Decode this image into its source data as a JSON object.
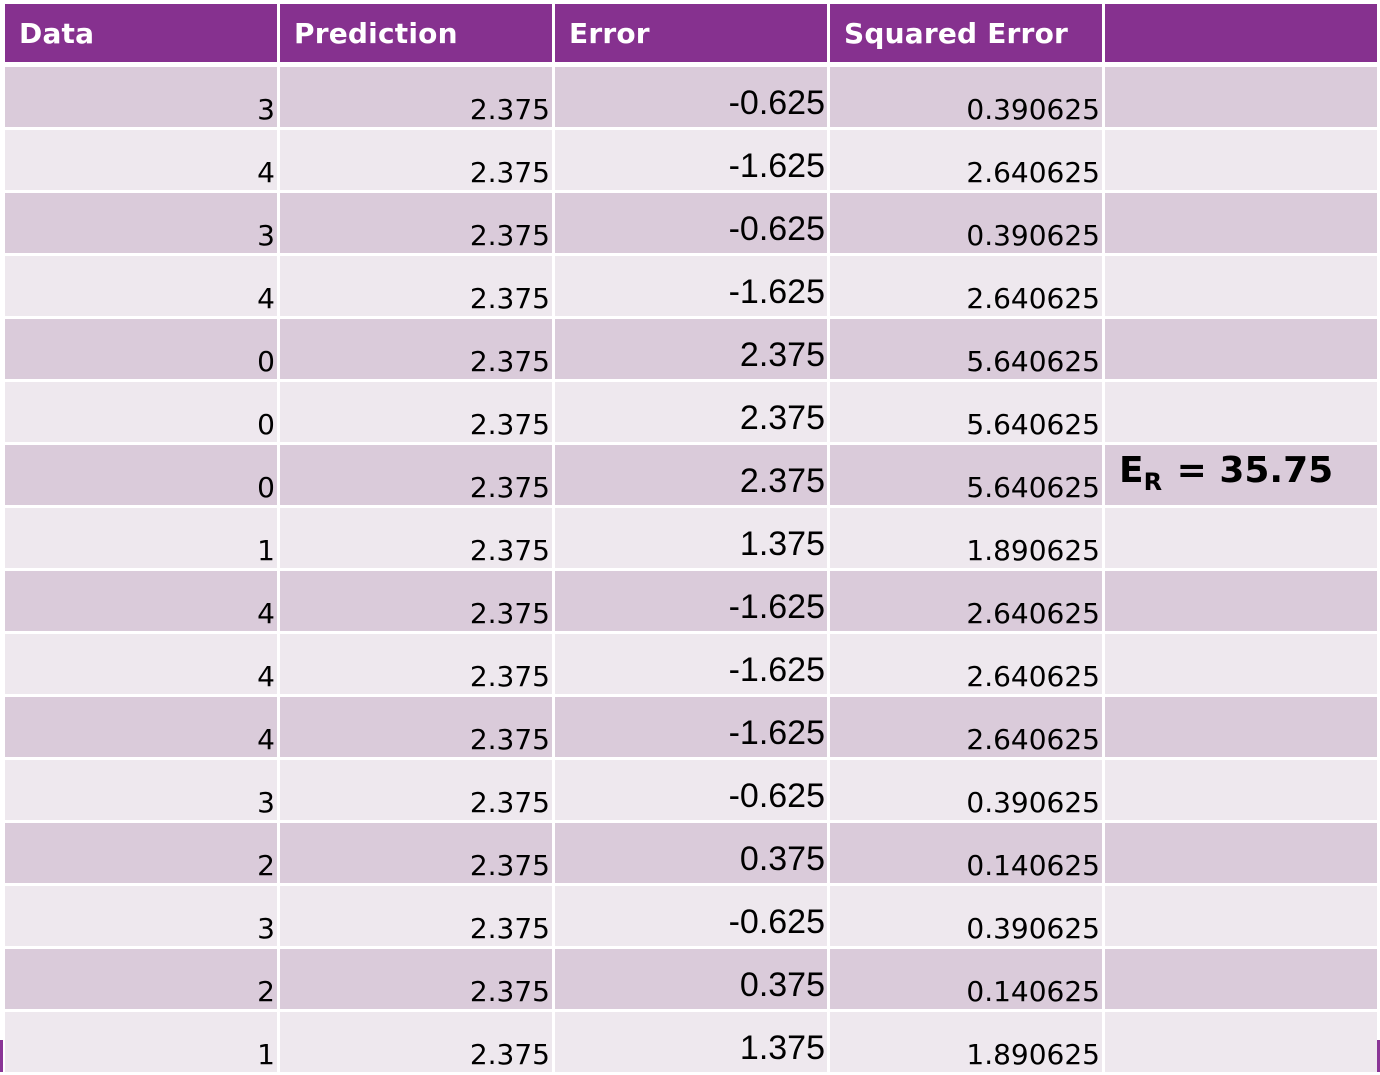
{
  "columns": [
    "Data",
    "Prediction",
    "Error",
    "Squared Error",
    ""
  ],
  "rows": [
    {
      "data": "3",
      "prediction": "2.375",
      "error": "-0.625",
      "squared_error": "0.390625"
    },
    {
      "data": "4",
      "prediction": "2.375",
      "error": "-1.625",
      "squared_error": "2.640625"
    },
    {
      "data": "3",
      "prediction": "2.375",
      "error": "-0.625",
      "squared_error": "0.390625"
    },
    {
      "data": "4",
      "prediction": "2.375",
      "error": "-1.625",
      "squared_error": "2.640625"
    },
    {
      "data": "0",
      "prediction": "2.375",
      "error": "2.375",
      "squared_error": "5.640625"
    },
    {
      "data": "0",
      "prediction": "2.375",
      "error": "2.375",
      "squared_error": "5.640625"
    },
    {
      "data": "0",
      "prediction": "2.375",
      "error": "2.375",
      "squared_error": "5.640625"
    },
    {
      "data": "1",
      "prediction": "2.375",
      "error": "1.375",
      "squared_error": "1.890625"
    },
    {
      "data": "4",
      "prediction": "2.375",
      "error": "-1.625",
      "squared_error": "2.640625"
    },
    {
      "data": "4",
      "prediction": "2.375",
      "error": "-1.625",
      "squared_error": "2.640625"
    },
    {
      "data": "4",
      "prediction": "2.375",
      "error": "-1.625",
      "squared_error": "2.640625"
    },
    {
      "data": "3",
      "prediction": "2.375",
      "error": "-0.625",
      "squared_error": "0.390625"
    },
    {
      "data": "2",
      "prediction": "2.375",
      "error": "0.375",
      "squared_error": "0.140625"
    },
    {
      "data": "3",
      "prediction": "2.375",
      "error": "-0.625",
      "squared_error": "0.390625"
    },
    {
      "data": "2",
      "prediction": "2.375",
      "error": "0.375",
      "squared_error": "0.140625"
    },
    {
      "data": "1",
      "prediction": "2.375",
      "error": "1.375",
      "squared_error": "1.890625"
    }
  ],
  "summary": {
    "symbol": "E",
    "subscript": "R",
    "equals": " = ",
    "value": "35.75",
    "row_index": 6
  },
  "colors": {
    "header_bg": "#86318f",
    "row_odd": "#dacbda",
    "row_even": "#eee8ee"
  }
}
